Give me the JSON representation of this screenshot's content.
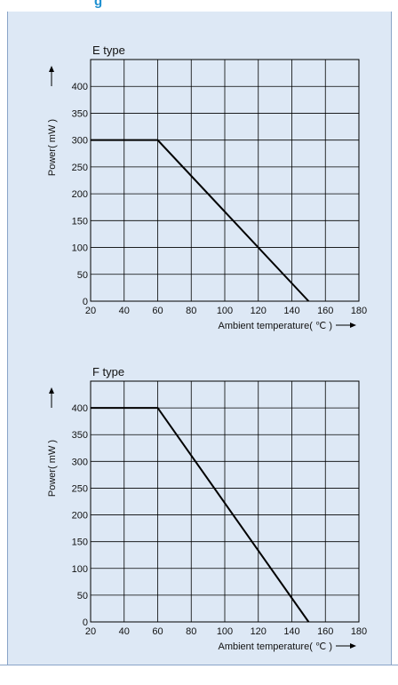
{
  "header": {
    "text": "g"
  },
  "colors": {
    "panel": "#dde8f5",
    "border": "#8aa4c8",
    "accent": "#1e90d0",
    "line": "#000000"
  },
  "chart_data": [
    {
      "type": "line",
      "title": "E type",
      "xlabel": "Ambient temperature( ℃ )",
      "ylabel": "Power( mW )",
      "x_ticks": [
        "20",
        "40",
        "60",
        "80",
        "100",
        "120",
        "140",
        "160",
        "180"
      ],
      "y_ticks": [
        "0",
        "50",
        "100",
        "150",
        "200",
        "250",
        "300",
        "350",
        "400"
      ],
      "xlim": [
        20,
        180
      ],
      "ylim": [
        0,
        450
      ],
      "grid": true,
      "series": [
        {
          "x": [
            20,
            60,
            150
          ],
          "y": [
            300,
            300,
            0
          ]
        }
      ]
    },
    {
      "type": "line",
      "title": "F type",
      "xlabel": "Ambient temperature( ℃ )",
      "ylabel": "Power( mW )",
      "x_ticks": [
        "20",
        "40",
        "60",
        "80",
        "100",
        "120",
        "140",
        "160",
        "180"
      ],
      "y_ticks": [
        "0",
        "50",
        "100",
        "150",
        "200",
        "250",
        "300",
        "350",
        "400"
      ],
      "xlim": [
        20,
        180
      ],
      "ylim": [
        0,
        450
      ],
      "grid": true,
      "series": [
        {
          "x": [
            20,
            60,
            150
          ],
          "y": [
            400,
            400,
            0
          ]
        }
      ]
    }
  ]
}
